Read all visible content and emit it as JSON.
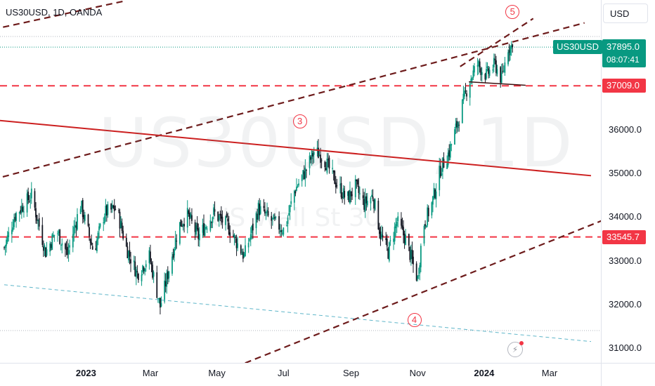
{
  "header": {
    "symbol_title": "US30USD, 1D, OANDA",
    "currency_button": "USD"
  },
  "watermark": {
    "main": "US30USD, 1D",
    "sub": "US Wall St 30"
  },
  "price_label": {
    "symbol": "US30USD",
    "last_price": "37895.0",
    "countdown": "08:07:41"
  },
  "levels": [
    {
      "label": "37009.0",
      "value": 37009.0
    },
    {
      "label": "33545.7",
      "value": 33545.7
    }
  ],
  "colors": {
    "up": "#089981",
    "down": "#131722",
    "level": "#f23645",
    "trend": "#6d1b1b",
    "channel": "#cc1f1f",
    "lower": "#5fb6c9"
  },
  "icons": {
    "flash": "lightning-icon"
  },
  "chart_data": {
    "type": "candlestick",
    "title": "US30USD, 1D, OANDA",
    "xlabel": "",
    "ylabel": "",
    "ylim": [
      30600,
      38800
    ],
    "grid": false,
    "y_ticks": [
      "36000.0",
      "35000.0",
      "34000.0",
      "33000.0",
      "32000.0",
      "31000.0"
    ],
    "y_tick_values": [
      36000,
      35000,
      34000,
      33000,
      32000,
      31000
    ],
    "x_ticks": [
      {
        "label": "2023",
        "day": 75,
        "bold": true
      },
      {
        "label": "Mar",
        "day": 134,
        "bold": false
      },
      {
        "label": "May",
        "day": 195,
        "bold": false
      },
      {
        "label": "Jul",
        "day": 256,
        "bold": false
      },
      {
        "label": "Sep",
        "day": 318,
        "bold": false
      },
      {
        "label": "Nov",
        "day": 379,
        "bold": false
      },
      {
        "label": "2024",
        "day": 440,
        "bold": true
      },
      {
        "label": "Mar",
        "day": 500,
        "bold": false
      }
    ],
    "x_range_days": [
      0,
      540
    ],
    "last_close": 37895.0,
    "anchors": [
      [
        0,
        33300
      ],
      [
        10,
        34050
      ],
      [
        25,
        34500
      ],
      [
        38,
        33200
      ],
      [
        48,
        33700
      ],
      [
        58,
        33150
      ],
      [
        70,
        34300
      ],
      [
        82,
        33200
      ],
      [
        92,
        34100
      ],
      [
        103,
        34200
      ],
      [
        112,
        33300
      ],
      [
        122,
        32700
      ],
      [
        133,
        33100
      ],
      [
        143,
        31950
      ],
      [
        150,
        32700
      ],
      [
        160,
        33800
      ],
      [
        168,
        34050
      ],
      [
        178,
        33550
      ],
      [
        192,
        34100
      ],
      [
        205,
        33800
      ],
      [
        220,
        33100
      ],
      [
        233,
        34200
      ],
      [
        246,
        33900
      ],
      [
        257,
        33700
      ],
      [
        266,
        34600
      ],
      [
        276,
        35050
      ],
      [
        284,
        35500
      ],
      [
        292,
        35400
      ],
      [
        304,
        34800
      ],
      [
        314,
        34400
      ],
      [
        322,
        34700
      ],
      [
        330,
        34300
      ],
      [
        338,
        34500
      ],
      [
        345,
        33600
      ],
      [
        352,
        33200
      ],
      [
        360,
        33900
      ],
      [
        368,
        33500
      ],
      [
        375,
        32900
      ],
      [
        379,
        32580
      ],
      [
        384,
        33800
      ],
      [
        392,
        34300
      ],
      [
        400,
        35100
      ],
      [
        408,
        35500
      ],
      [
        416,
        36200
      ],
      [
        426,
        37100
      ],
      [
        434,
        37500
      ],
      [
        442,
        37250
      ],
      [
        450,
        37500
      ],
      [
        456,
        37150
      ],
      [
        462,
        37900
      ],
      [
        466,
        37895
      ]
    ],
    "trendlines": [
      {
        "name": "wave-channel-upper",
        "points": [
          [
            -20,
            34800
          ],
          [
            532,
            38450
          ]
        ],
        "style": "dashed"
      },
      {
        "name": "wave-channel-lower",
        "points": [
          [
            185,
            30300
          ],
          [
            556,
            34000
          ]
        ],
        "style": "dashed"
      },
      {
        "name": "top-left-line",
        "points": [
          [
            -20,
            38250
          ],
          [
            110,
            38950
          ]
        ],
        "style": "dashed"
      },
      {
        "name": "resistance-line",
        "points": [
          [
            -20,
            36250
          ],
          [
            538,
            34950
          ]
        ],
        "style": "solid"
      },
      {
        "name": "lower-line",
        "points": [
          [
            0,
            32450
          ],
          [
            538,
            31150
          ]
        ],
        "style": "dotted"
      },
      {
        "name": "wedge-top",
        "points": [
          [
            418,
            37450
          ],
          [
            485,
            38550
          ]
        ],
        "style": "dashed"
      },
      {
        "name": "wedge-base",
        "points": [
          [
            426,
            37100
          ],
          [
            478,
            37020
          ]
        ],
        "style": "solid"
      }
    ],
    "waves": [
      {
        "label": "3",
        "day": 271,
        "price": 36200
      },
      {
        "label": "4",
        "day": 376,
        "price": 31650
      },
      {
        "label": "5",
        "day": 466,
        "price": 38700
      }
    ]
  }
}
